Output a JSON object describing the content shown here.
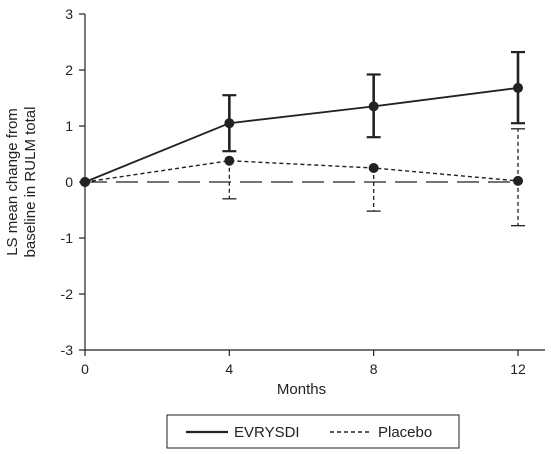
{
  "chart_data": {
    "type": "line",
    "title": "",
    "xlabel": "Months",
    "ylabel": "LS mean change from baseline in RULM total",
    "ylabel_lines": [
      "LS mean change from",
      "baseline in RULM total"
    ],
    "x": [
      0,
      4,
      8,
      12
    ],
    "xlim": [
      0,
      12
    ],
    "ylim": [
      -3,
      3
    ],
    "xticks": [
      "0",
      "4",
      "8",
      "12"
    ],
    "yticks": [
      "3",
      "2",
      "1",
      "0",
      "-1",
      "-2",
      "-3"
    ],
    "legend_position": "bottom-center",
    "grid": false,
    "reference_line_y": 0,
    "series": [
      {
        "name": "EVRYSDI",
        "values": [
          0,
          1.05,
          1.35,
          1.68
        ],
        "err_low": [
          null,
          0.55,
          0.8,
          1.05
        ],
        "err_high": [
          null,
          1.55,
          1.92,
          2.32
        ],
        "line_style": "solid",
        "color": "#222222"
      },
      {
        "name": "Placebo",
        "values": [
          0,
          0.38,
          0.25,
          0.02
        ],
        "err_low": [
          null,
          -0.3,
          -0.52,
          -0.78
        ],
        "err_high": [
          null,
          null,
          null,
          0.95
        ],
        "line_style": "dashed",
        "color": "#222222"
      }
    ]
  }
}
